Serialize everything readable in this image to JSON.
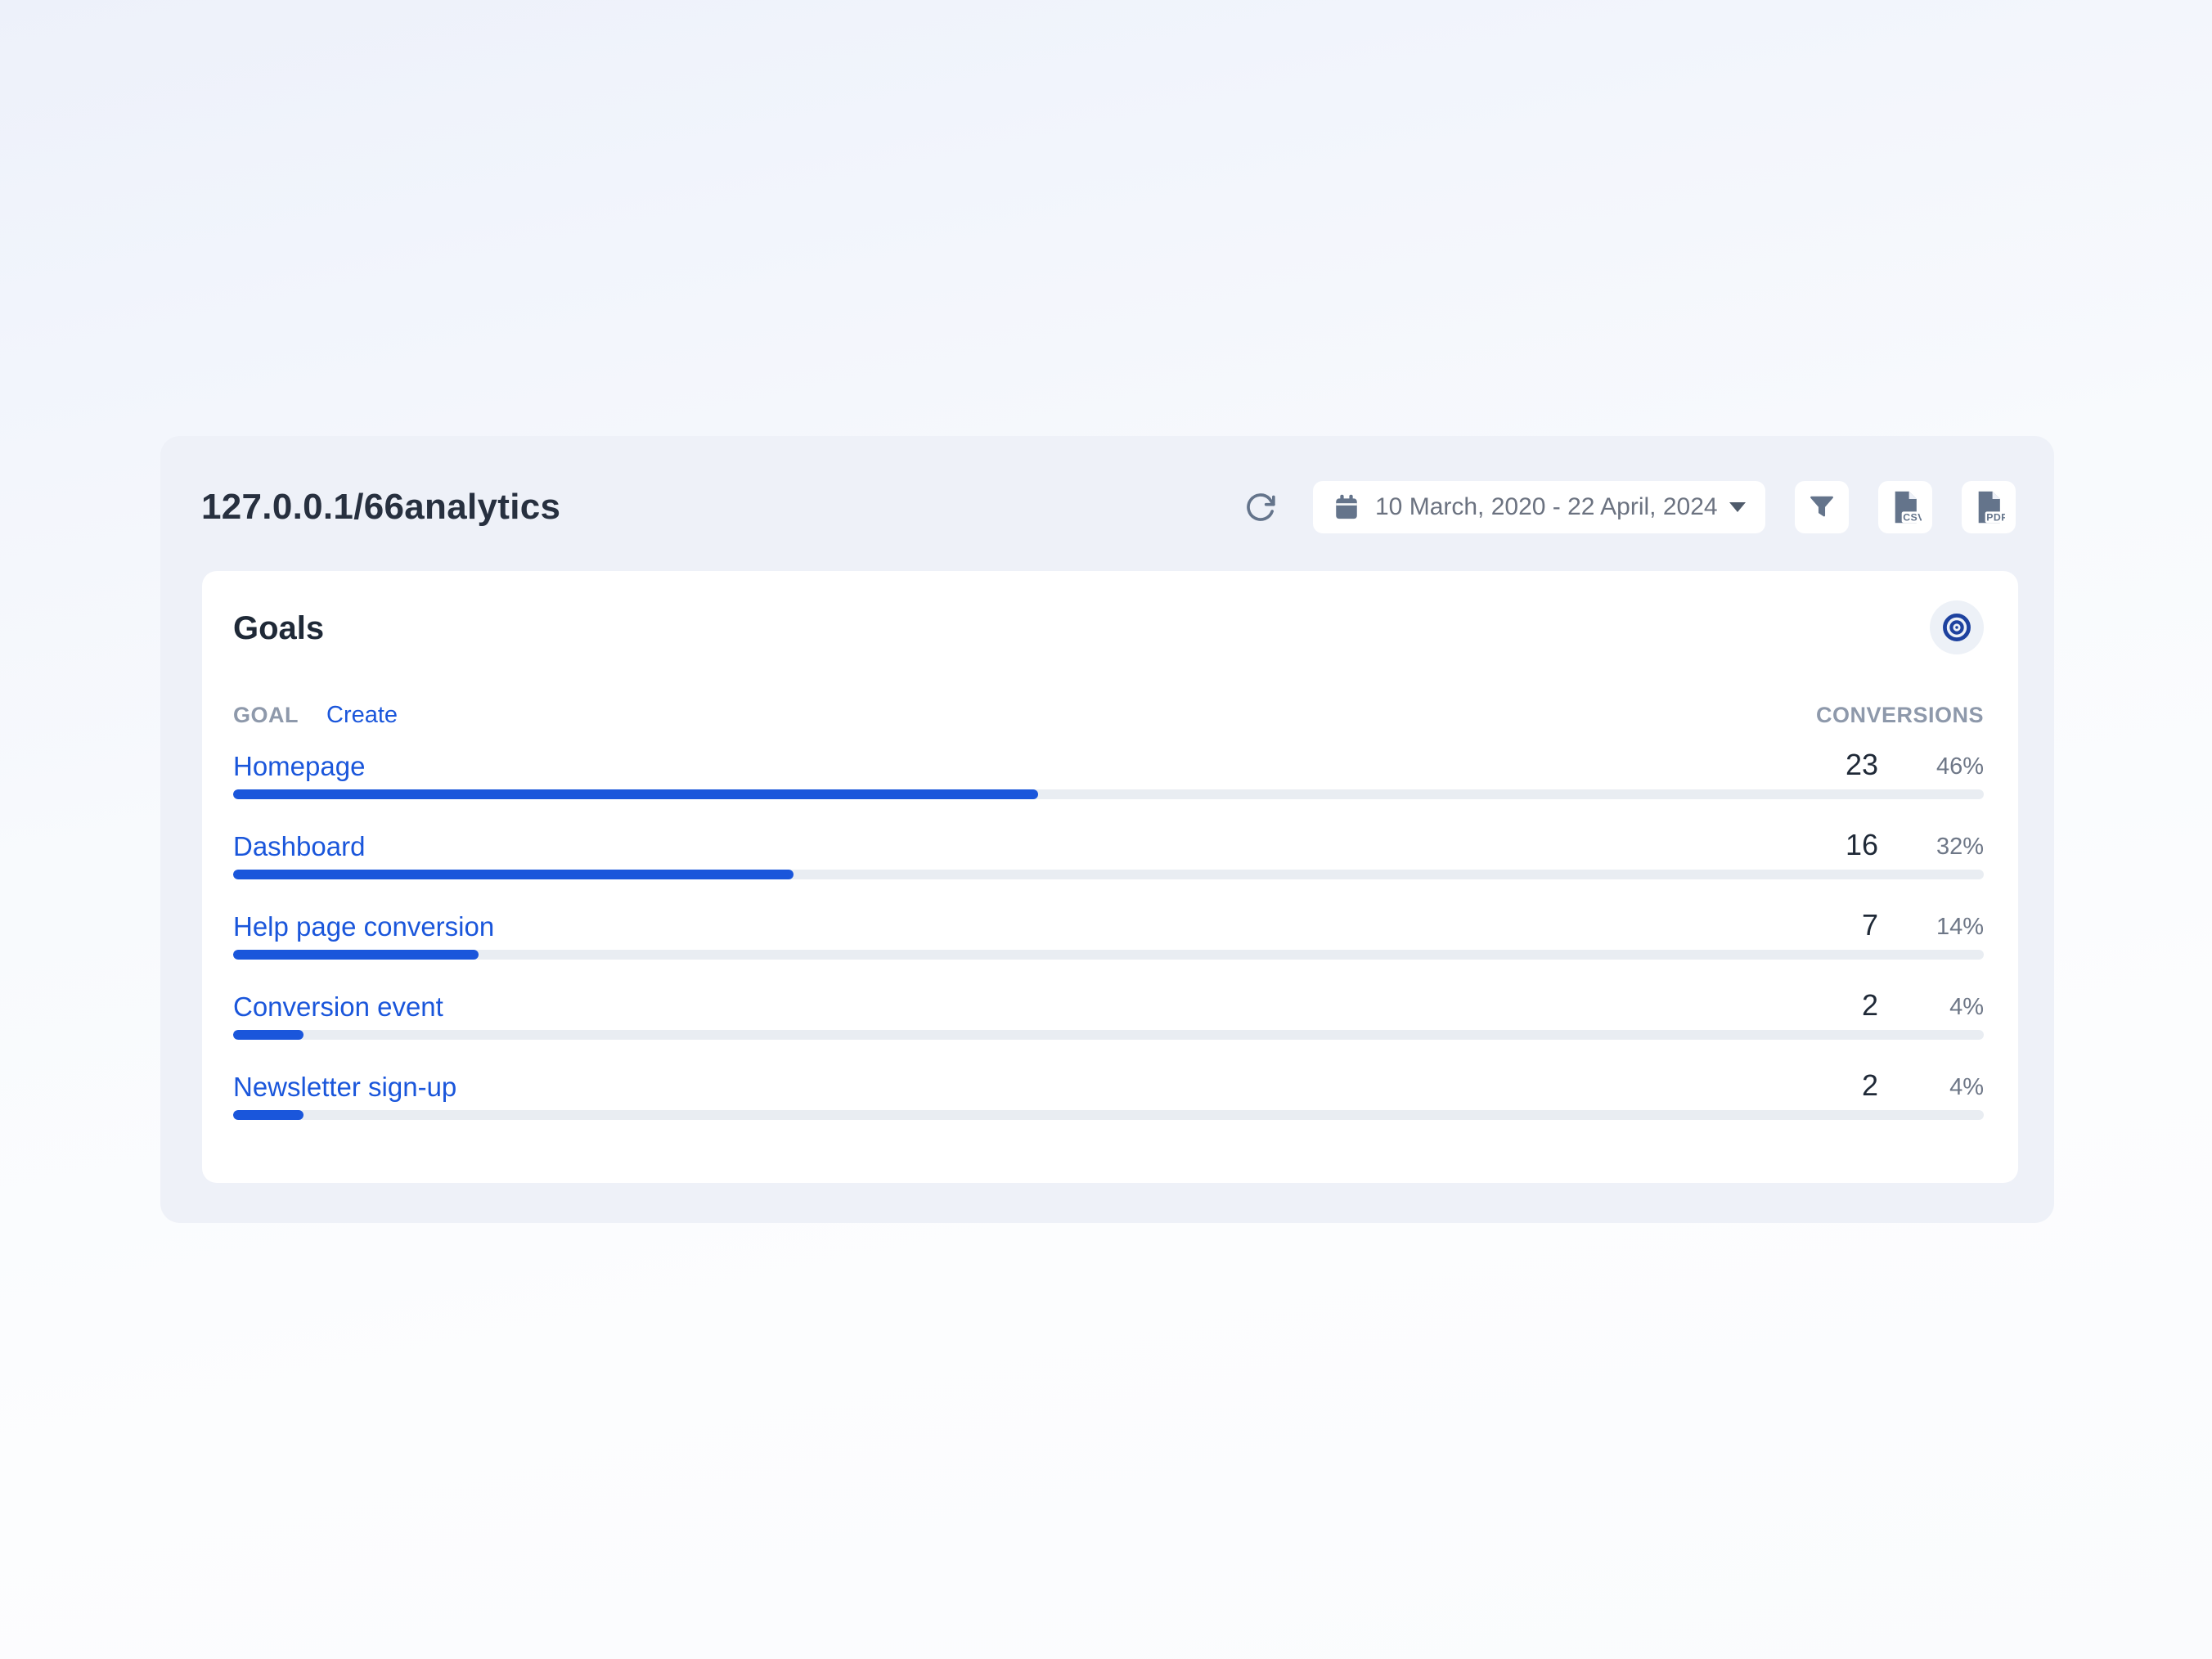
{
  "header": {
    "title": "127.0.0.1/66analytics",
    "date_range": "10 March, 2020 - 22 April, 2024",
    "export_csv_label": "CSV",
    "export_pdf_label": "PDF"
  },
  "goals": {
    "title": "Goals",
    "columns": {
      "goal": "GOAL",
      "create": "Create",
      "conversions": "CONVERSIONS"
    },
    "rows": [
      {
        "label": "Homepage",
        "conversions": "23",
        "rate": "46%",
        "rate_percent": 46
      },
      {
        "label": "Dashboard",
        "conversions": "16",
        "rate": "32%",
        "rate_percent": 32
      },
      {
        "label": "Help page conversion",
        "conversions": "7",
        "rate": "14%",
        "rate_percent": 14
      },
      {
        "label": "Conversion event",
        "conversions": "2",
        "rate": "4%",
        "rate_percent": 4
      },
      {
        "label": "Newsletter sign-up",
        "conversions": "2",
        "rate": "4%",
        "rate_percent": 4
      }
    ]
  },
  "colors": {
    "accent_blue": "#1a56db",
    "target_blue": "#1e429f",
    "icon_slate": "#64748b",
    "track_gray": "#e9edf2",
    "panel_bg": "#eef1f8",
    "card_bg": "#ffffff",
    "heading_dark": "#1f2937",
    "muted_gray": "#6b7280",
    "column_gray": "#8e99ab"
  }
}
